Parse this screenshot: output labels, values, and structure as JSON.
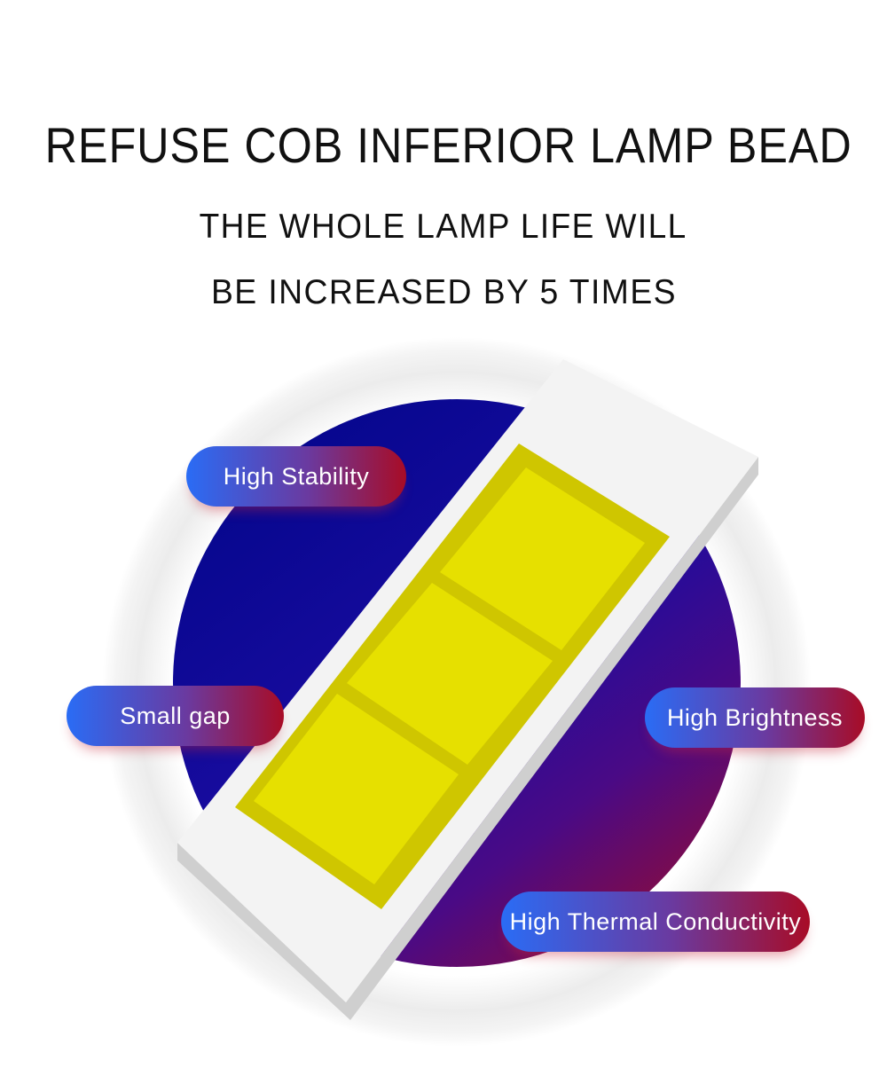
{
  "heading": {
    "title": "REFUSE COB INFERIOR LAMP BEAD",
    "subtitle_line1": "THE WHOLE LAMP LIFE WILL",
    "subtitle_line2": "BE INCREASED BY 5 TIMES"
  },
  "features": [
    {
      "label": "High Stability"
    },
    {
      "label": "Small gap"
    },
    {
      "label": "High Brightness"
    },
    {
      "label": "High Thermal Conductivity"
    }
  ],
  "colors": {
    "circle_start": "#07078f",
    "circle_end": "#8a0c3e",
    "chip_yellow": "#e6e000",
    "chip_border": "#cfc600",
    "pill_start": "#2a6cf5",
    "pill_end": "#a80c26"
  }
}
